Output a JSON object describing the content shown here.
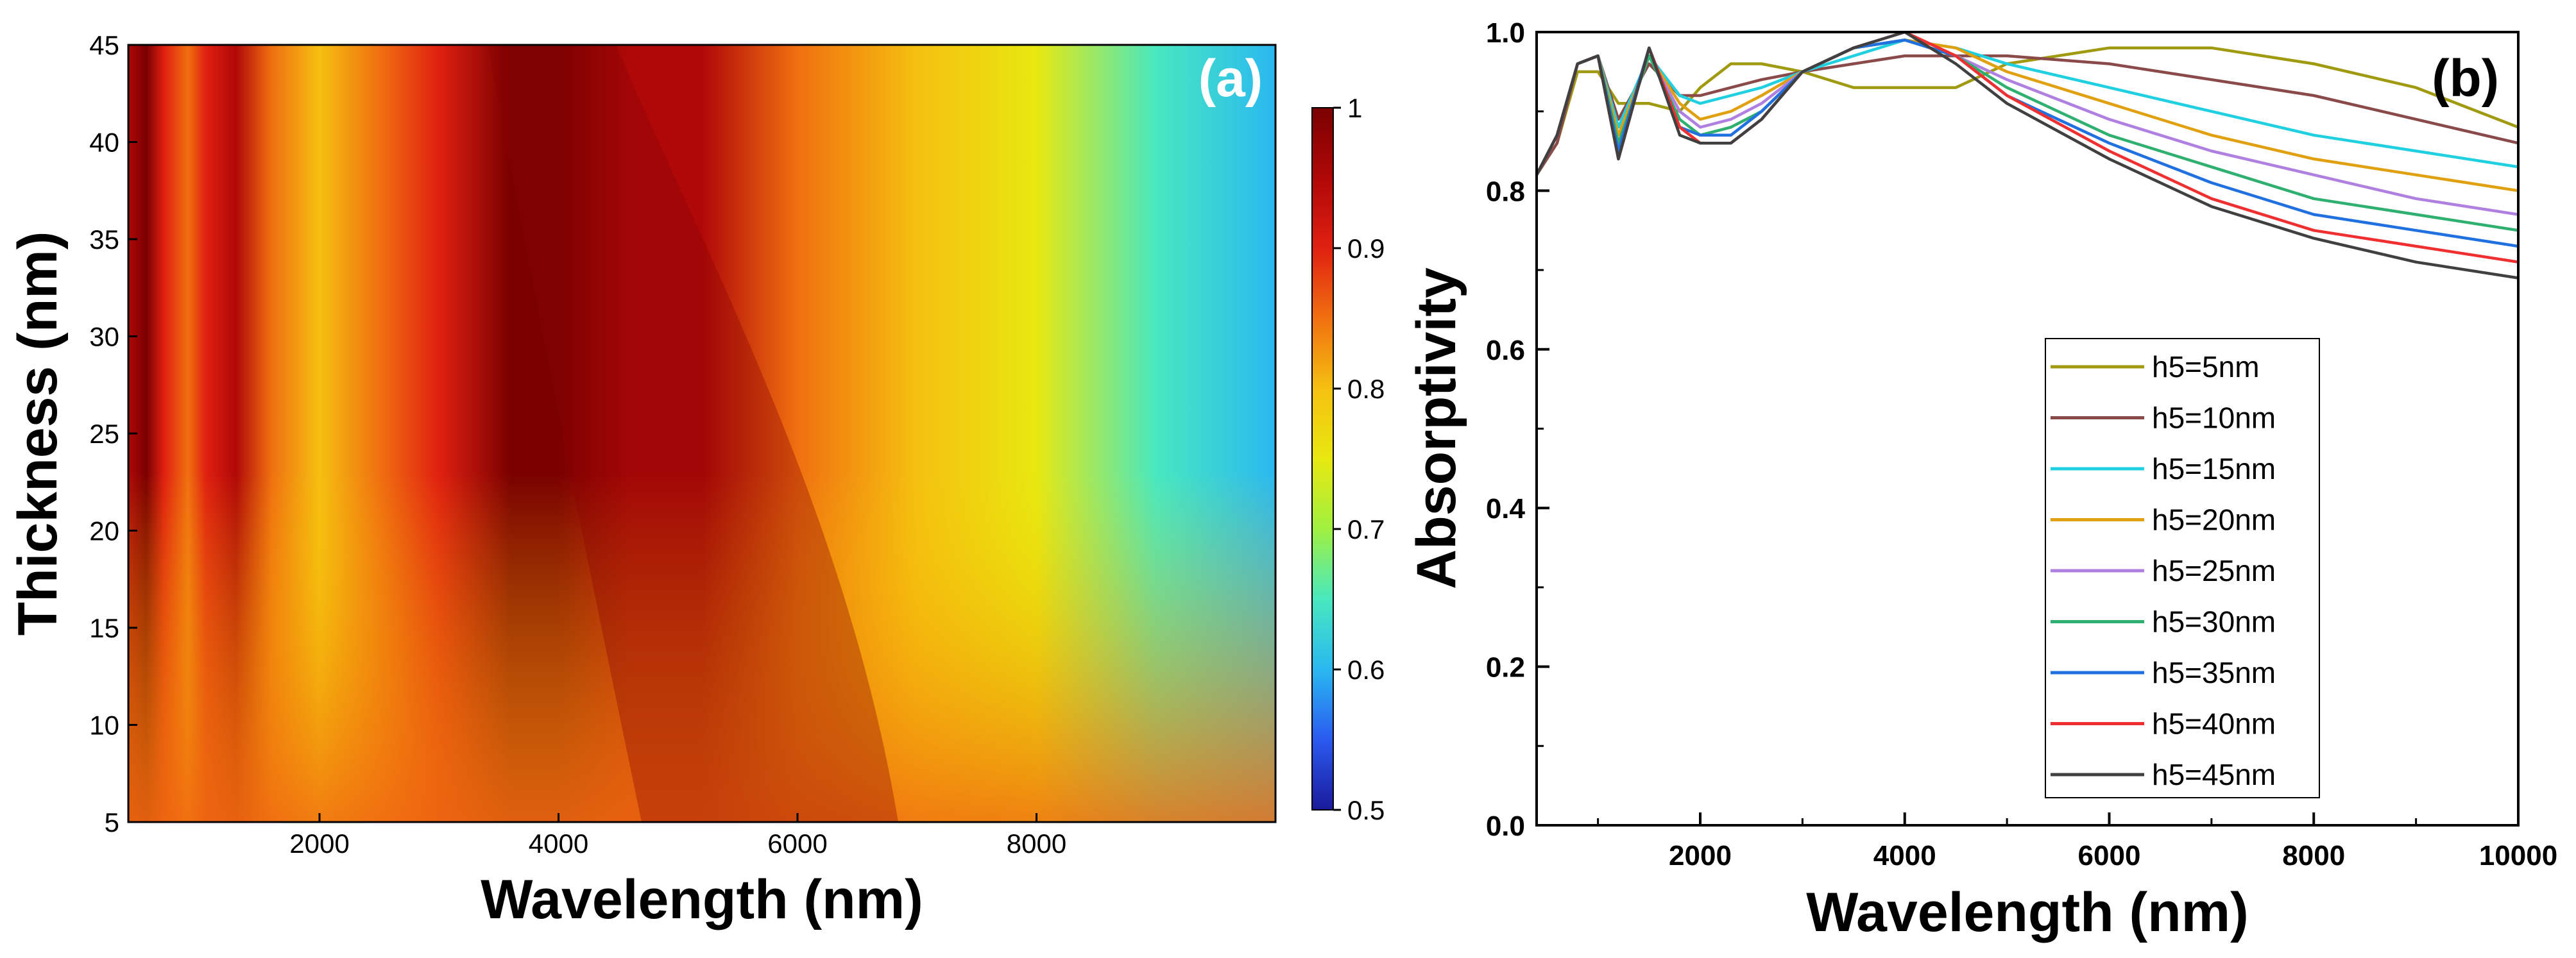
{
  "chart_data": [
    {
      "id": "a",
      "type": "heatmap",
      "panel_label": "(a)",
      "xlabel": "Wavelength (nm)",
      "ylabel": "Thickness (nm)",
      "xlim": [
        400,
        10000
      ],
      "ylim": [
        5,
        45
      ],
      "x_ticks": [
        2000,
        4000,
        6000,
        8000
      ],
      "y_ticks": [
        5,
        10,
        15,
        20,
        25,
        30,
        35,
        40,
        45
      ],
      "colorbar": {
        "min": 0.5,
        "max": 1,
        "ticks": [
          0.5,
          0.6,
          0.7,
          0.8,
          0.9,
          1
        ],
        "tick_labels": [
          "0.5",
          "0.6",
          "0.7",
          "0.8",
          "0.9",
          "1"
        ],
        "colors": [
          "#1a1a9a",
          "#2a5af0",
          "#2ab8f0",
          "#48e8c0",
          "#a0f040",
          "#e8e810",
          "#f5c010",
          "#f07010",
          "#e02010",
          "#b00808",
          "#7a0000"
        ]
      },
      "description_of_values": "Absorptivity as a function of wavelength and top-layer thickness h5; high (~1) near 4000 nm, decreasing toward long wavelengths and thin layers"
    },
    {
      "id": "b",
      "type": "line",
      "panel_label": "(b)",
      "xlabel": "Wavelength (nm)",
      "ylabel": "Absorptivity",
      "xlim": [
        400,
        10000
      ],
      "ylim": [
        0.0,
        1.0
      ],
      "x_ticks": [
        2000,
        4000,
        6000,
        8000,
        10000
      ],
      "y_ticks": [
        0.0,
        0.2,
        0.4,
        0.6,
        0.8,
        1.0
      ],
      "y_tick_labels": [
        "0.0",
        "0.2",
        "0.4",
        "0.6",
        "0.8",
        "1.0"
      ],
      "legend_position": "center-right",
      "x": [
        400,
        600,
        800,
        1000,
        1200,
        1500,
        1800,
        2000,
        2300,
        2600,
        3000,
        3500,
        4000,
        4500,
        5000,
        6000,
        7000,
        8000,
        9000,
        10000
      ],
      "series": [
        {
          "name": "h5=5nm",
          "color": "#a09a10",
          "values": [
            0.82,
            0.86,
            0.95,
            0.95,
            0.91,
            0.91,
            0.9,
            0.93,
            0.96,
            0.96,
            0.95,
            0.93,
            0.93,
            0.93,
            0.96,
            0.98,
            0.98,
            0.96,
            0.93,
            0.88
          ]
        },
        {
          "name": "h5=10nm",
          "color": "#8b4a4a",
          "values": [
            0.82,
            0.86,
            0.96,
            0.97,
            0.89,
            0.96,
            0.92,
            0.92,
            0.93,
            0.94,
            0.95,
            0.96,
            0.97,
            0.97,
            0.97,
            0.96,
            0.94,
            0.92,
            0.89,
            0.86
          ]
        },
        {
          "name": "h5=15nm",
          "color": "#20d0e0",
          "values": [
            0.82,
            0.87,
            0.96,
            0.97,
            0.88,
            0.97,
            0.92,
            0.91,
            0.92,
            0.93,
            0.95,
            0.97,
            0.99,
            0.98,
            0.96,
            0.93,
            0.9,
            0.87,
            0.85,
            0.83
          ]
        },
        {
          "name": "h5=20nm",
          "color": "#e0a010",
          "values": [
            0.82,
            0.87,
            0.96,
            0.97,
            0.87,
            0.97,
            0.91,
            0.89,
            0.9,
            0.92,
            0.95,
            0.98,
            0.99,
            0.98,
            0.95,
            0.91,
            0.87,
            0.84,
            0.82,
            0.8
          ]
        },
        {
          "name": "h5=25nm",
          "color": "#b080e0",
          "values": [
            0.82,
            0.87,
            0.96,
            0.97,
            0.86,
            0.97,
            0.9,
            0.88,
            0.89,
            0.91,
            0.95,
            0.98,
            0.99,
            0.97,
            0.94,
            0.89,
            0.85,
            0.82,
            0.79,
            0.77
          ]
        },
        {
          "name": "h5=30nm",
          "color": "#30b070",
          "values": [
            0.82,
            0.87,
            0.96,
            0.97,
            0.86,
            0.97,
            0.89,
            0.87,
            0.88,
            0.9,
            0.95,
            0.98,
            0.99,
            0.97,
            0.93,
            0.87,
            0.83,
            0.79,
            0.77,
            0.75
          ]
        },
        {
          "name": "h5=35nm",
          "color": "#2070e0",
          "values": [
            0.82,
            0.87,
            0.96,
            0.97,
            0.85,
            0.98,
            0.88,
            0.87,
            0.87,
            0.9,
            0.95,
            0.98,
            0.99,
            0.97,
            0.92,
            0.86,
            0.81,
            0.77,
            0.75,
            0.73
          ]
        },
        {
          "name": "h5=40nm",
          "color": "#f03030",
          "values": [
            0.82,
            0.87,
            0.96,
            0.97,
            0.84,
            0.98,
            0.88,
            0.86,
            0.86,
            0.89,
            0.95,
            0.98,
            1.0,
            0.97,
            0.92,
            0.85,
            0.79,
            0.75,
            0.73,
            0.71
          ]
        },
        {
          "name": "h5=45nm",
          "color": "#404040",
          "values": [
            0.82,
            0.87,
            0.96,
            0.97,
            0.84,
            0.98,
            0.87,
            0.86,
            0.86,
            0.89,
            0.95,
            0.98,
            1.0,
            0.96,
            0.91,
            0.84,
            0.78,
            0.74,
            0.71,
            0.69
          ]
        }
      ]
    }
  ]
}
